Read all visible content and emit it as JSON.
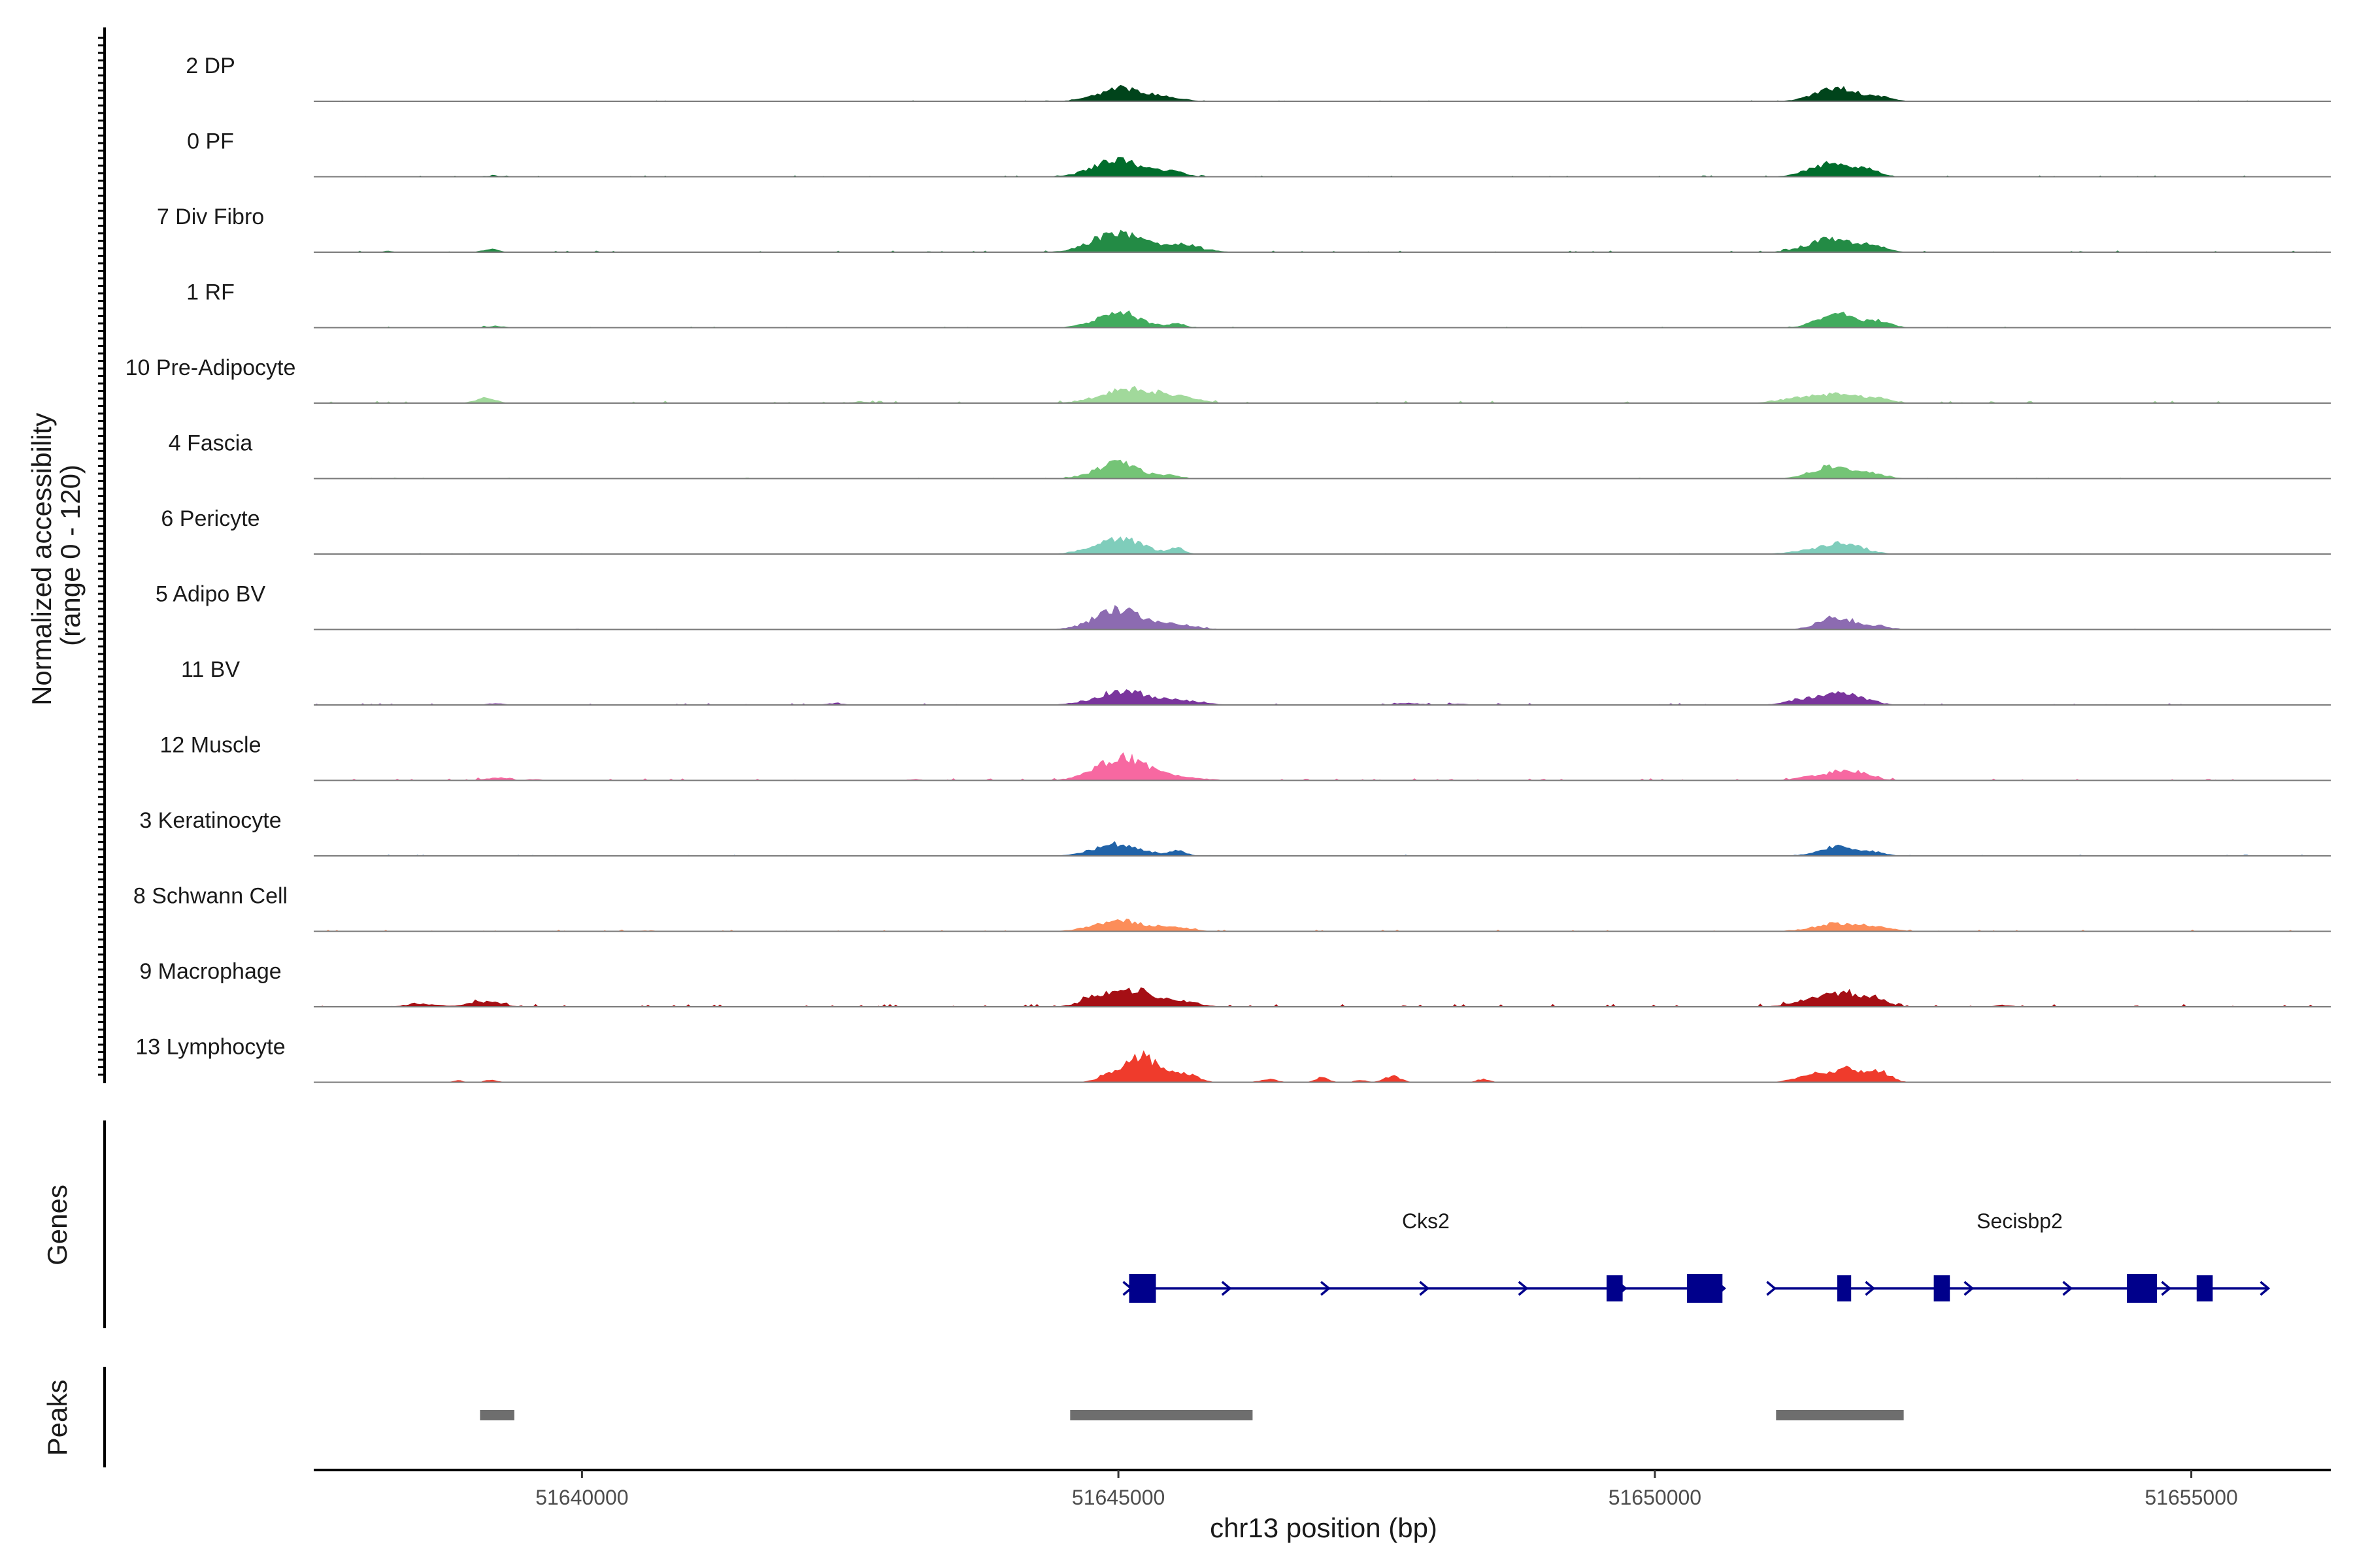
{
  "chart_data": {
    "type": "area",
    "genome": {
      "chromosome": "chr13",
      "xlim": [
        51637500,
        51656300
      ],
      "ticks": [
        51640000,
        51645000,
        51650000,
        51655000
      ],
      "tick_labels": [
        "51640000",
        "51645000",
        "51650000",
        "51655000"
      ],
      "xlabel": "chr13 position (bp)"
    },
    "coverage": {
      "ylabel_line1": "Normalized accessibility",
      "ylabel_line2": "(range 0 - 120)",
      "ylim": [
        0,
        120
      ],
      "tracks": [
        {
          "name": "2 DP",
          "color": "#00441b",
          "noise": 0.5,
          "peaks": [
            [
              51645050,
              220,
              22
            ],
            [
              51645500,
              150,
              4
            ],
            [
              51651700,
              200,
              21
            ],
            [
              51652100,
              120,
              6
            ]
          ]
        },
        {
          "name": "0 PF",
          "color": "#006d2c",
          "noise": 0.7,
          "peaks": [
            [
              51645000,
              230,
              27
            ],
            [
              51645500,
              120,
              8
            ],
            [
              51651650,
              200,
              22
            ],
            [
              51652000,
              100,
              9
            ],
            [
              51639200,
              150,
              1.5
            ]
          ]
        },
        {
          "name": "7 Div Fibro",
          "color": "#238b45",
          "noise": 0.9,
          "peaks": [
            [
              51645000,
              240,
              30
            ],
            [
              51645600,
              200,
              10
            ],
            [
              51651650,
              220,
              22
            ],
            [
              51652050,
              120,
              8
            ],
            [
              51639150,
              80,
              5
            ],
            [
              51638200,
              60,
              2
            ]
          ]
        },
        {
          "name": "1 RF",
          "color": "#41ab5d",
          "noise": 0.6,
          "peaks": [
            [
              51645000,
              200,
              26
            ],
            [
              51645550,
              80,
              6
            ],
            [
              51651700,
              180,
              22
            ],
            [
              51652100,
              110,
              10
            ],
            [
              51639200,
              120,
              2
            ]
          ]
        },
        {
          "name": "10 Pre-Adipocyte",
          "color": "#a1d99b",
          "noise": 1.3,
          "peaks": [
            [
              51645100,
              260,
              24
            ],
            [
              51645600,
              160,
              8
            ],
            [
              51651700,
              220,
              15
            ],
            [
              51651300,
              200,
              6
            ],
            [
              51652100,
              120,
              6
            ],
            [
              51639100,
              90,
              9
            ],
            [
              51642600,
              80,
              3
            ]
          ]
        },
        {
          "name": "4 Fascia",
          "color": "#74c476",
          "noise": 0.5,
          "peaks": [
            [
              51645000,
              210,
              25
            ],
            [
              51645500,
              80,
              5
            ],
            [
              51651650,
              180,
              21
            ],
            [
              51652050,
              120,
              8
            ]
          ]
        },
        {
          "name": "6 Pericyte",
          "color": "#7fcdbb",
          "noise": 0.5,
          "peaks": [
            [
              51645000,
              220,
              27
            ],
            [
              51645550,
              70,
              9
            ],
            [
              51651750,
              190,
              18
            ],
            [
              51651350,
              150,
              4
            ]
          ]
        },
        {
          "name": "5 Adipo BV",
          "color": "#8c6bb1",
          "noise": 0.4,
          "peaks": [
            [
              51645000,
              220,
              33
            ],
            [
              51645550,
              180,
              8
            ],
            [
              51651700,
              170,
              20
            ],
            [
              51652100,
              100,
              5
            ]
          ]
        },
        {
          "name": "11 BV",
          "color": "#7a359d",
          "noise": 1.0,
          "peaks": [
            [
              51645050,
              250,
              22
            ],
            [
              51645600,
              200,
              6
            ],
            [
              51651750,
              200,
              20
            ],
            [
              51651350,
              150,
              7
            ],
            [
              51639200,
              80,
              3
            ],
            [
              51642350,
              80,
              3
            ],
            [
              51647700,
              120,
              3
            ],
            [
              51648200,
              80,
              2
            ]
          ]
        },
        {
          "name": "12 Muscle",
          "color": "#f768a1",
          "noise": 1.2,
          "peaks": [
            [
              51645050,
              240,
              37
            ],
            [
              51645600,
              200,
              5
            ],
            [
              51651800,
              180,
              17
            ],
            [
              51651450,
              150,
              5
            ],
            [
              51639200,
              100,
              5
            ],
            [
              51639550,
              70,
              2
            ],
            [
              51643100,
              60,
              2
            ]
          ]
        },
        {
          "name": "3 Keratinocyte",
          "color": "#2163a8",
          "noise": 0.6,
          "peaks": [
            [
              51645000,
              220,
              20
            ],
            [
              51645550,
              80,
              8
            ],
            [
              51651700,
              170,
              15
            ],
            [
              51652050,
              110,
              6
            ]
          ]
        },
        {
          "name": "8 Schwann Cell",
          "color": "#fc8d59",
          "noise": 0.9,
          "peaks": [
            [
              51645000,
              230,
              18
            ],
            [
              51645550,
              150,
              6
            ],
            [
              51651700,
              220,
              13
            ],
            [
              51652100,
              150,
              5
            ],
            [
              51640600,
              80,
              1.5
            ]
          ]
        },
        {
          "name": "9 Macrophage",
          "color": "#a50f15",
          "noise": 1.6,
          "peaks": [
            [
              51645150,
              180,
              28
            ],
            [
              51644800,
              150,
              15
            ],
            [
              51645600,
              150,
              9
            ],
            [
              51651800,
              180,
              22
            ],
            [
              51651450,
              180,
              10
            ],
            [
              51652100,
              90,
              8
            ],
            [
              51639100,
              150,
              9
            ],
            [
              51638500,
              150,
              5
            ],
            [
              51653250,
              80,
              3
            ]
          ]
        },
        {
          "name": "13 Lymphocyte",
          "color": "#ef3b2c",
          "noise": 0.0,
          "peaks": [
            [
              51645200,
              130,
              45
            ],
            [
              51644900,
              100,
              12
            ],
            [
              51645600,
              120,
              16
            ],
            [
              51645400,
              80,
              8
            ],
            [
              51651800,
              130,
              23
            ],
            [
              51651500,
              120,
              12
            ],
            [
              51652100,
              100,
              17
            ],
            [
              51651300,
              100,
              4
            ],
            [
              51646400,
              80,
              5
            ],
            [
              51646900,
              60,
              8
            ],
            [
              51647550,
              80,
              10
            ],
            [
              51647250,
              50,
              4
            ],
            [
              51648400,
              60,
              5
            ],
            [
              51639150,
              60,
              4
            ],
            [
              51638850,
              50,
              3
            ]
          ]
        }
      ]
    },
    "genes": {
      "panel_label": "Genes",
      "items": [
        {
          "name": "Cks2",
          "start": 51645100,
          "end": 51650630,
          "strand": "+",
          "exons": [
            [
              51645100,
              51645350
            ],
            [
              51649550,
              51649700
            ],
            [
              51650300,
              51650630
            ]
          ]
        },
        {
          "name": "Secisbp2",
          "start": 51651100,
          "end": 51655700,
          "strand": "+",
          "exons": [
            [
              51651700,
              51651830
            ],
            [
              51652600,
              51652750
            ],
            [
              51654400,
              51654680
            ],
            [
              51655050,
              51655200
            ]
          ]
        }
      ]
    },
    "peaks": {
      "panel_label": "Peaks",
      "regions": [
        [
          51639050,
          51639370
        ],
        [
          51644550,
          51646250
        ],
        [
          51651130,
          51652320
        ]
      ]
    }
  }
}
